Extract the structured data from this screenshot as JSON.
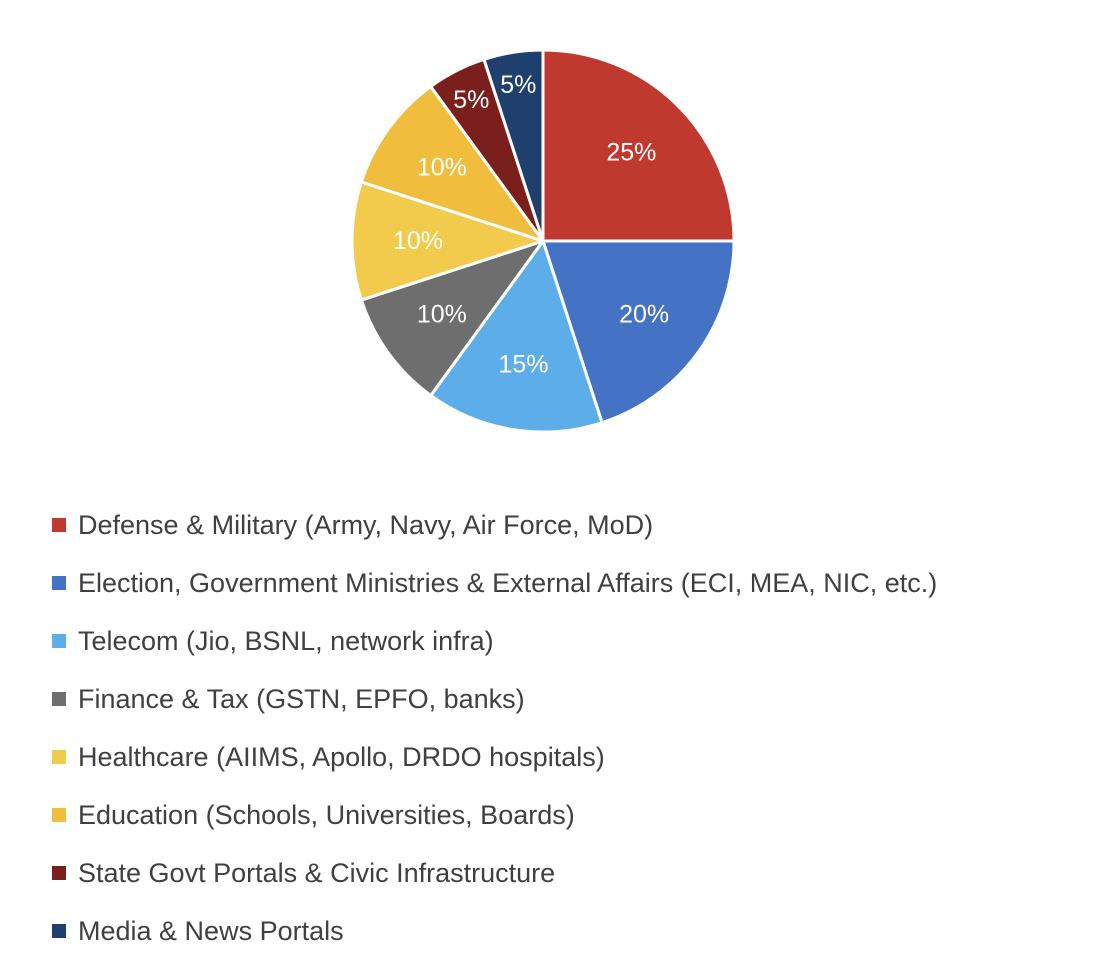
{
  "chart_data": {
    "type": "pie",
    "title": "",
    "start_angle_deg": 0,
    "direction": "clockwise",
    "legend_position": "bottom",
    "slices": [
      {
        "name": "Defense & Military (Army, Navy, Air Force, MoD)",
        "value": 25,
        "label": "25%",
        "color": "#c0392f"
      },
      {
        "name": "Election, Government Ministries & External Affairs (ECI, MEA, NIC, etc.)",
        "value": 20,
        "label": "20%",
        "color": "#4472c4"
      },
      {
        "name": "Telecom (Jio, BSNL, network infra)",
        "value": 15,
        "label": "15%",
        "color": "#5dade8"
      },
      {
        "name": "Finance & Tax (GSTN, EPFO, banks)",
        "value": 10,
        "label": "10%",
        "color": "#6e6e6e"
      },
      {
        "name": "Healthcare (AIIMS, Apollo, DRDO hospitals)",
        "value": 10,
        "label": "10%",
        "color": "#f2cb4c"
      },
      {
        "name": "Education (Schools, Universities, Boards)",
        "value": 10,
        "label": "10%",
        "color": "#f0bd3c"
      },
      {
        "name": "State Govt Portals & Civic Infrastructure",
        "value": 5,
        "label": "5%",
        "color": "#7b1f1c"
      },
      {
        "name": "Media & News Portals",
        "value": 5,
        "label": "5%",
        "color": "#1f3f6e"
      }
    ]
  }
}
